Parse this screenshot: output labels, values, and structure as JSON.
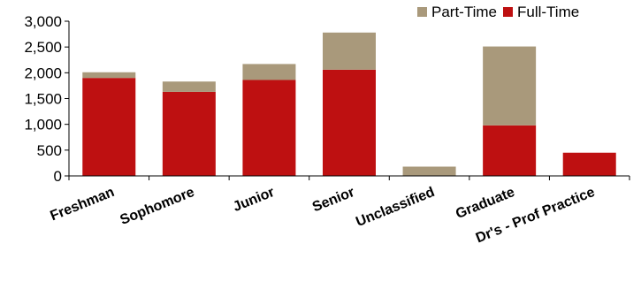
{
  "chart_data": {
    "type": "bar",
    "stacked": true,
    "title": "",
    "xlabel": "",
    "ylabel": "",
    "categories": [
      "Freshman",
      "Sophomore",
      "Junior",
      "Senior",
      "Unclassified",
      "Graduate",
      "Dr's - Prof Practice"
    ],
    "series": [
      {
        "name": "Full-Time",
        "color": "#BE1011",
        "values": [
          1900,
          1630,
          1860,
          2060,
          0,
          980,
          450
        ]
      },
      {
        "name": "Part-Time",
        "color": "#A9997B",
        "values": [
          110,
          200,
          310,
          720,
          180,
          1530,
          0
        ]
      }
    ],
    "ylim": [
      0,
      3000
    ],
    "yticks": [
      "0",
      "500",
      "1,000",
      "1,500",
      "2,000",
      "2,500",
      "3,000"
    ],
    "ytick_values": [
      0,
      500,
      1000,
      1500,
      2000,
      2500,
      3000
    ],
    "grid": false,
    "legend": {
      "position": "top-right",
      "items": [
        {
          "label": "Part-Time",
          "color": "#A9997B"
        },
        {
          "label": "Full-Time",
          "color": "#BE1011"
        }
      ]
    }
  }
}
